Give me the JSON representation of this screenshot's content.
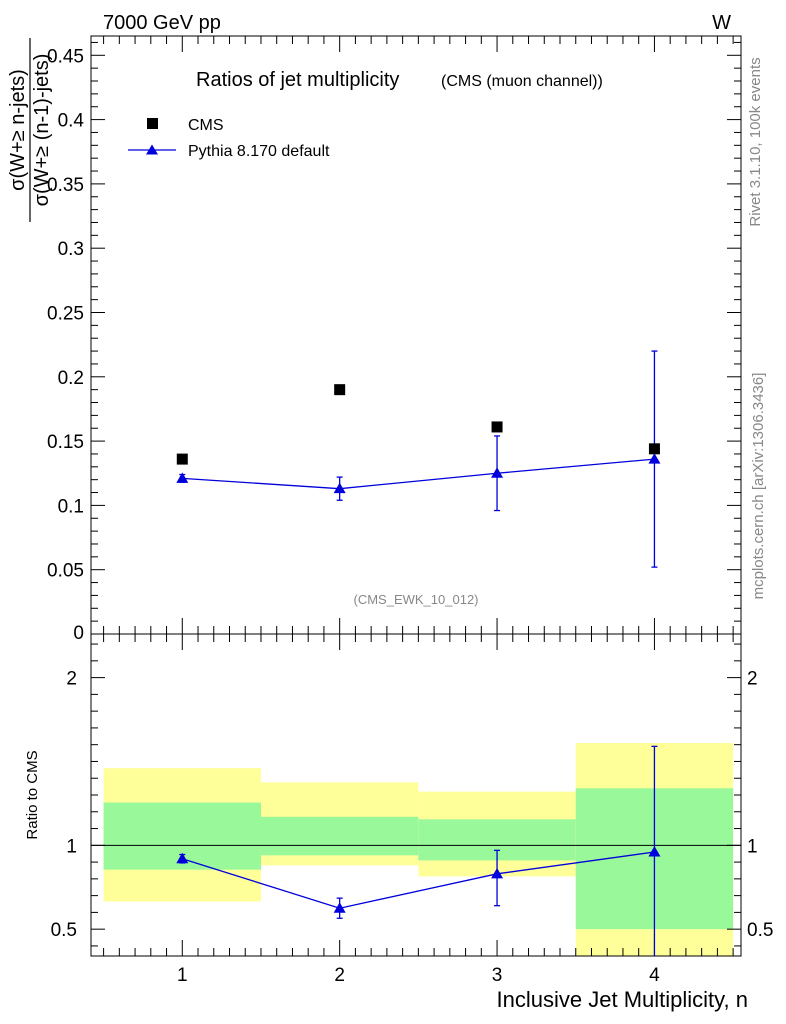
{
  "header": {
    "energy_label": "7000 GeV pp",
    "process_label": "W"
  },
  "side_labels": {
    "rivet": "Rivet 3.1.10,  100k events",
    "source": "mcplots.cern.ch [arXiv:1306.3436]"
  },
  "chart_data": [
    {
      "type": "scatter",
      "title": "Ratios of jet multiplicity",
      "subtitle": "(CMS (muon channel))",
      "analysis_tag": "(CMS_EWK_10_012)",
      "ylabel": "σ(W+≥ n-jets) / σ(W+≥ (n-1)-jets)",
      "ylim": [
        0,
        0.465
      ],
      "yticks": [
        0.05,
        0.1,
        0.15,
        0.2,
        0.25,
        0.3,
        0.35,
        0.4,
        0.45
      ],
      "yticklabels": [
        "0.05",
        "0.1",
        "0.15",
        "0.2",
        "0.25",
        "0.3",
        "0.35",
        "0.4",
        "0.45"
      ],
      "ytick_zero_label": "0",
      "xlim": [
        0.42,
        4.55
      ],
      "legend": {
        "placement": "top-left",
        "entries": [
          "CMS",
          "Pythia 8.170 default"
        ]
      },
      "series": [
        {
          "name": "CMS",
          "marker": "square",
          "color": "#000000",
          "x": [
            1,
            2,
            3,
            4
          ],
          "y": [
            0.136,
            0.19,
            0.161,
            0.144
          ]
        },
        {
          "name": "Pythia 8.170 default",
          "marker": "triangle",
          "color": "#0000dd",
          "x": [
            1,
            2,
            3,
            4
          ],
          "y": [
            0.121,
            0.113,
            0.125,
            0.136
          ],
          "yerr_low": [
            0.003,
            0.009,
            0.029,
            0.084
          ],
          "yerr_high": [
            0.003,
            0.009,
            0.029,
            0.084
          ]
        }
      ]
    },
    {
      "type": "line",
      "ylabel": "Ratio to CMS",
      "xlabel": "Inclusive Jet Multiplicity, n",
      "ylim": [
        0.34,
        2.26
      ],
      "yticks": [
        0.5,
        1,
        2
      ],
      "yticklabels": [
        "0.5",
        "1",
        "2"
      ],
      "xticks": [
        1,
        2,
        3,
        4
      ],
      "xticklabels": [
        "1",
        "2",
        "3",
        "4"
      ],
      "xlim": [
        0.42,
        4.55
      ],
      "reference_line": 1,
      "bands": [
        {
          "x_low": 0.5,
          "x_high": 1.5,
          "stat_low": 0.855,
          "stat_high": 1.255,
          "total_low": 0.665,
          "total_high": 1.46
        },
        {
          "x_low": 1.5,
          "x_high": 2.5,
          "stat_low": 0.94,
          "stat_high": 1.17,
          "total_low": 0.88,
          "total_high": 1.375
        },
        {
          "x_low": 2.5,
          "x_high": 3.5,
          "stat_low": 0.91,
          "stat_high": 1.155,
          "total_low": 0.815,
          "total_high": 1.32
        },
        {
          "x_low": 3.5,
          "x_high": 4.5,
          "stat_low": 0.5,
          "stat_high": 1.34,
          "total_low": 0.34,
          "total_high": 1.61
        }
      ],
      "series": [
        {
          "name": "Pythia 8.170 default",
          "color": "#0000dd",
          "x": [
            1,
            2,
            3,
            4
          ],
          "y": [
            0.92,
            0.625,
            0.83,
            0.96
          ],
          "yerr_low": [
            0.025,
            0.06,
            0.19,
            0.62
          ],
          "yerr_high": [
            0.025,
            0.06,
            0.14,
            0.63
          ]
        }
      ]
    }
  ],
  "colors": {
    "stat_band": "#99f899",
    "total_band": "#ffff99",
    "axis": "#000000",
    "mc": "#0000dd"
  }
}
